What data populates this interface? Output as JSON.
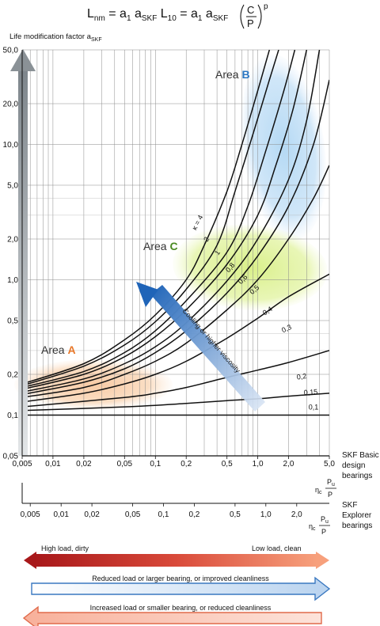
{
  "chart_data": {
    "type": "line",
    "title": "Lnm = a1 aSKF L10 = a1 aSKF (C/P)^p",
    "title_parts": {
      "lhs": "L",
      "lhs_sub": "nm",
      "eq1": " = a",
      "a1_sub": "1",
      "a": " a",
      "askf_sub": "SKF",
      "l10": " L",
      "l10_sub": "10",
      "eq2": " = a",
      "a1b_sub": "1",
      "a2": " a",
      "askf2_sub": "SKF",
      "frac_num": "C",
      "frac_den": "P",
      "exp": "p"
    },
    "ylabel": "Life modification factor a",
    "ylabel_sub": "SKF",
    "y_scale": "log",
    "ylim": [
      0.05,
      50
    ],
    "y_ticks": [
      "0,05",
      "0,1",
      "0,2",
      "0,5",
      "1,0",
      "2,0",
      "5,0",
      "10,0",
      "20,0",
      "50,0"
    ],
    "y_tick_values": [
      0.05,
      0.1,
      0.2,
      0.5,
      1,
      2,
      5,
      10,
      20,
      50
    ],
    "x_scale": "log",
    "xlim": [
      0.005,
      5
    ],
    "x_ticks_basic": [
      "0,005",
      "0,01",
      "0,02",
      "0,05",
      "0,1",
      "0,2",
      "0,5",
      "1,0",
      "2,0",
      "5,0"
    ],
    "x_tick_values_basic": [
      0.005,
      0.01,
      0.02,
      0.05,
      0.1,
      0.2,
      0.5,
      1,
      2,
      5
    ],
    "x_axis_basic_label": "SKF Basic design bearings",
    "x_axis_basic_label_lines": [
      "SKF Basic",
      "design",
      "bearings"
    ],
    "x_ticks_explorer": [
      "0,005",
      "0,01",
      "0,02",
      "0,05",
      "0,1",
      "0,2",
      "0,5",
      "1,0",
      "2,0"
    ],
    "x_tick_values_explorer": [
      0.005,
      0.01,
      0.02,
      0.05,
      0.1,
      0.2,
      0.5,
      1,
      2
    ],
    "x_axis_explorer_label": "SKF Explorer bearings",
    "x_axis_explorer_label_lines": [
      "SKF",
      "Explorer",
      "bearings"
    ],
    "xlabel_formula": {
      "eta": "η",
      "eta_sub": "c",
      "num": "P",
      "num_sub": "u",
      "den": "P"
    },
    "grid": true,
    "series": [
      {
        "name": "κ = 4",
        "points": [
          [
            0.005,
            0.17
          ],
          [
            0.02,
            0.24
          ],
          [
            0.05,
            0.36
          ],
          [
            0.1,
            0.55
          ],
          [
            0.2,
            1.0
          ],
          [
            0.3,
            1.8
          ],
          [
            0.5,
            4.5
          ],
          [
            0.7,
            10.0
          ],
          [
            1.0,
            25.0
          ],
          [
            1.3,
            50.0
          ]
        ]
      },
      {
        "name": "2",
        "points": [
          [
            0.005,
            0.165
          ],
          [
            0.02,
            0.23
          ],
          [
            0.05,
            0.33
          ],
          [
            0.1,
            0.49
          ],
          [
            0.2,
            0.85
          ],
          [
            0.4,
            1.8
          ],
          [
            0.6,
            4.5
          ],
          [
            0.9,
            12.0
          ],
          [
            1.3,
            30.0
          ],
          [
            1.6,
            50.0
          ]
        ]
      },
      {
        "name": "1",
        "points": [
          [
            0.005,
            0.16
          ],
          [
            0.02,
            0.21
          ],
          [
            0.05,
            0.29
          ],
          [
            0.1,
            0.42
          ],
          [
            0.2,
            0.7
          ],
          [
            0.5,
            1.6
          ],
          [
            0.8,
            3.5
          ],
          [
            1.2,
            9.0
          ],
          [
            1.8,
            25.0
          ],
          [
            2.3,
            50.0
          ]
        ]
      },
      {
        "name": "0,8",
        "points": [
          [
            0.005,
            0.155
          ],
          [
            0.02,
            0.2
          ],
          [
            0.05,
            0.27
          ],
          [
            0.1,
            0.38
          ],
          [
            0.2,
            0.6
          ],
          [
            0.5,
            1.3
          ],
          [
            1.0,
            3.0
          ],
          [
            1.5,
            7.0
          ],
          [
            2.2,
            18.0
          ],
          [
            3.0,
            50.0
          ]
        ]
      },
      {
        "name": "0,6",
        "points": [
          [
            0.005,
            0.148
          ],
          [
            0.02,
            0.185
          ],
          [
            0.05,
            0.24
          ],
          [
            0.1,
            0.32
          ],
          [
            0.2,
            0.48
          ],
          [
            0.5,
            0.98
          ],
          [
            1.0,
            2.0
          ],
          [
            2.0,
            5.5
          ],
          [
            3.0,
            15.0
          ],
          [
            4.0,
            50.0
          ]
        ]
      },
      {
        "name": "0,5",
        "points": [
          [
            0.005,
            0.142
          ],
          [
            0.02,
            0.175
          ],
          [
            0.05,
            0.22
          ],
          [
            0.1,
            0.29
          ],
          [
            0.2,
            0.42
          ],
          [
            0.5,
            0.8
          ],
          [
            1.0,
            1.5
          ],
          [
            2.0,
            3.5
          ],
          [
            3.5,
            10.0
          ],
          [
            5.0,
            30.0
          ]
        ]
      },
      {
        "name": "0,4",
        "points": [
          [
            0.005,
            0.135
          ],
          [
            0.02,
            0.16
          ],
          [
            0.05,
            0.2
          ],
          [
            0.1,
            0.25
          ],
          [
            0.2,
            0.34
          ],
          [
            0.5,
            0.6
          ],
          [
            1.0,
            1.0
          ],
          [
            2.0,
            2.0
          ],
          [
            3.5,
            4.0
          ],
          [
            5.0,
            7.0
          ]
        ]
      },
      {
        "name": "0,3",
        "points": [
          [
            0.005,
            0.125
          ],
          [
            0.02,
            0.145
          ],
          [
            0.05,
            0.17
          ],
          [
            0.1,
            0.2
          ],
          [
            0.2,
            0.25
          ],
          [
            0.5,
            0.37
          ],
          [
            1.0,
            0.52
          ],
          [
            2.0,
            0.75
          ],
          [
            5.0,
            1.1
          ]
        ]
      },
      {
        "name": "0,2",
        "points": [
          [
            0.005,
            0.115
          ],
          [
            0.05,
            0.135
          ],
          [
            0.1,
            0.145
          ],
          [
            0.2,
            0.16
          ],
          [
            0.5,
            0.19
          ],
          [
            1.0,
            0.215
          ],
          [
            2.0,
            0.245
          ],
          [
            5.0,
            0.3
          ]
        ]
      },
      {
        "name": "0,15",
        "points": [
          [
            0.005,
            0.108
          ],
          [
            0.05,
            0.115
          ],
          [
            0.2,
            0.122
          ],
          [
            0.5,
            0.128
          ],
          [
            1.0,
            0.132
          ],
          [
            2.0,
            0.138
          ],
          [
            5.0,
            0.145
          ]
        ]
      },
      {
        "name": "0,1",
        "points": [
          [
            0.005,
            0.1
          ],
          [
            5.0,
            0.1
          ]
        ]
      }
    ],
    "annotations": {
      "area_a": {
        "text": "Area ",
        "letter": "A",
        "color": "#e8782a"
      },
      "area_b": {
        "text": "Area ",
        "letter": "B",
        "color": "#2a76c2"
      },
      "area_c": {
        "text": "Area ",
        "letter": "C",
        "color": "#4a8a22"
      },
      "diagonal_arrow": "Cooling or higher viscosity"
    }
  },
  "bottom_arrows": {
    "load_left": "High load, dirty",
    "load_right": "Low load, clean",
    "reduced": "Reduced load or larger bearing, or improved cleanliness",
    "increased": "Increased load or smaller bearing, or reduced cleanliness"
  },
  "colors": {
    "area_a": "#f8c9a0",
    "area_b": "#9fcff0",
    "area_c": "#d8ee88",
    "grey_arrow": "#8e959a",
    "blue_arrow": "#2a6fbf",
    "red_dark": "#b01c1c",
    "red_light": "#f5a07e"
  }
}
